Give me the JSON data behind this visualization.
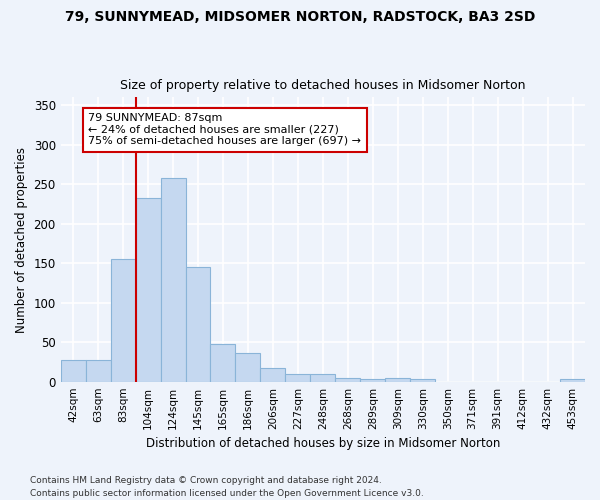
{
  "title": "79, SUNNYMEAD, MIDSOMER NORTON, RADSTOCK, BA3 2SD",
  "subtitle": "Size of property relative to detached houses in Midsomer Norton",
  "xlabel": "Distribution of detached houses by size in Midsomer Norton",
  "ylabel": "Number of detached properties",
  "footer1": "Contains HM Land Registry data © Crown copyright and database right 2024.",
  "footer2": "Contains public sector information licensed under the Open Government Licence v3.0.",
  "categories": [
    "42sqm",
    "63sqm",
    "83sqm",
    "104sqm",
    "124sqm",
    "145sqm",
    "165sqm",
    "186sqm",
    "206sqm",
    "227sqm",
    "248sqm",
    "268sqm",
    "289sqm",
    "309sqm",
    "330sqm",
    "350sqm",
    "371sqm",
    "391sqm",
    "412sqm",
    "432sqm",
    "453sqm"
  ],
  "values": [
    28,
    28,
    155,
    232,
    258,
    145,
    48,
    36,
    17,
    10,
    10,
    5,
    3,
    5,
    3,
    0,
    0,
    0,
    0,
    0,
    4
  ],
  "bar_color": "#c5d8f0",
  "bar_edge_color": "#8ab4d8",
  "background_color": "#eef3fb",
  "grid_color": "#ffffff",
  "ylim": [
    0,
    360
  ],
  "yticks": [
    0,
    50,
    100,
    150,
    200,
    250,
    300,
    350
  ],
  "property_label": "79 SUNNYMEAD: 87sqm",
  "annotation_line1": "← 24% of detached houses are smaller (227)",
  "annotation_line2": "75% of semi-detached houses are larger (697) →",
  "vline_x": 2.5,
  "annotation_color": "#cc0000",
  "annotation_box_color": "#ffffff",
  "annotation_box_edge": "#cc0000"
}
